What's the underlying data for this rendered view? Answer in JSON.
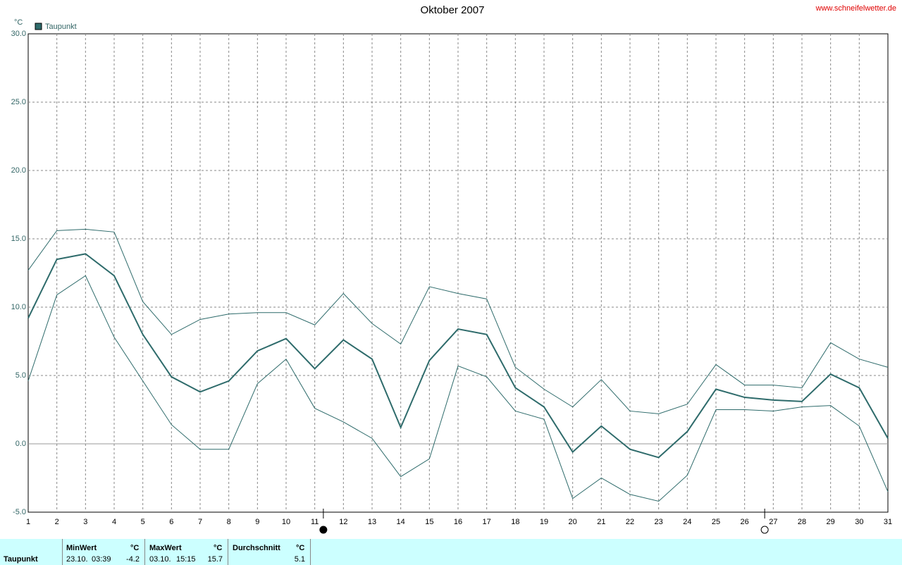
{
  "chart_data": {
    "type": "line",
    "title": "Oktober 2007",
    "source": "www.schneifelwetter.de",
    "y_unit": "°C",
    "x": [
      1,
      2,
      3,
      4,
      5,
      6,
      7,
      8,
      9,
      10,
      11,
      12,
      13,
      14,
      15,
      16,
      17,
      18,
      19,
      20,
      21,
      22,
      23,
      24,
      25,
      26,
      27,
      28,
      29,
      30,
      31
    ],
    "xlim": [
      1,
      31
    ],
    "xticks": [
      1,
      2,
      3,
      4,
      5,
      6,
      7,
      8,
      9,
      10,
      11,
      12,
      13,
      14,
      15,
      16,
      17,
      18,
      19,
      20,
      21,
      22,
      23,
      24,
      25,
      26,
      27,
      28,
      29,
      30,
      31
    ],
    "ylim": [
      -5,
      30
    ],
    "yticks": [
      {
        "value": -5,
        "label": "-5.0"
      },
      {
        "value": 0,
        "label": "0.0"
      },
      {
        "value": 5,
        "label": "5.0"
      },
      {
        "value": 10,
        "label": "10.0"
      },
      {
        "value": 15,
        "label": "15.0"
      },
      {
        "value": 20,
        "label": "20.0"
      },
      {
        "value": 25,
        "label": "25.0"
      },
      {
        "value": 30,
        "label": "30.0"
      }
    ],
    "grid": true,
    "legend": "top-left",
    "series": [
      {
        "name": "Taupunkt",
        "color": "#2e6b6b",
        "line_width": 2,
        "values": [
          9.2,
          13.5,
          13.9,
          12.3,
          8.0,
          4.9,
          3.8,
          4.6,
          6.8,
          7.7,
          5.5,
          7.6,
          6.2,
          1.2,
          6.1,
          8.4,
          8.0,
          4.1,
          2.7,
          -0.6,
          1.3,
          -0.4,
          -1.0,
          0.9,
          4.0,
          3.4,
          3.2,
          3.1,
          5.1,
          4.1,
          0.4
        ]
      },
      {
        "color": "#2e6b6b",
        "line_width": 1,
        "values": [
          12.7,
          15.6,
          15.7,
          15.5,
          10.4,
          8.0,
          9.1,
          9.5,
          9.6,
          9.6,
          8.7,
          11.0,
          8.8,
          7.3,
          11.5,
          11.0,
          10.6,
          5.6,
          4.0,
          2.7,
          4.7,
          2.4,
          2.2,
          2.9,
          5.8,
          4.3,
          4.3,
          4.1,
          7.4,
          6.2,
          5.6
        ]
      },
      {
        "color": "#2e6b6b",
        "line_width": 1,
        "values": [
          4.6,
          10.9,
          12.3,
          7.8,
          4.6,
          1.4,
          -0.4,
          -0.4,
          4.4,
          6.2,
          2.6,
          1.6,
          0.4,
          -2.4,
          -1.1,
          5.7,
          4.9,
          2.4,
          1.8,
          -4.0,
          -2.5,
          -3.7,
          -4.2,
          -2.3,
          2.5,
          2.5,
          2.4,
          2.7,
          2.8,
          1.3,
          -3.5
        ]
      }
    ],
    "moon_phases": [
      {
        "x": 11.3,
        "filled": true
      },
      {
        "x": 26.7,
        "filled": false
      }
    ]
  },
  "stats_table": {
    "row_label": "Taupunkt",
    "columns": [
      {
        "header": "MinWert",
        "unit": "°C",
        "date": "23.10.",
        "time": "03:39",
        "value": -4.2
      },
      {
        "header": "MaxWert",
        "unit": "°C",
        "date": "03.10.",
        "time": "15:15",
        "value": 15.7
      },
      {
        "header": "Durchschnitt",
        "unit": "°C",
        "value": 5.1
      }
    ]
  }
}
